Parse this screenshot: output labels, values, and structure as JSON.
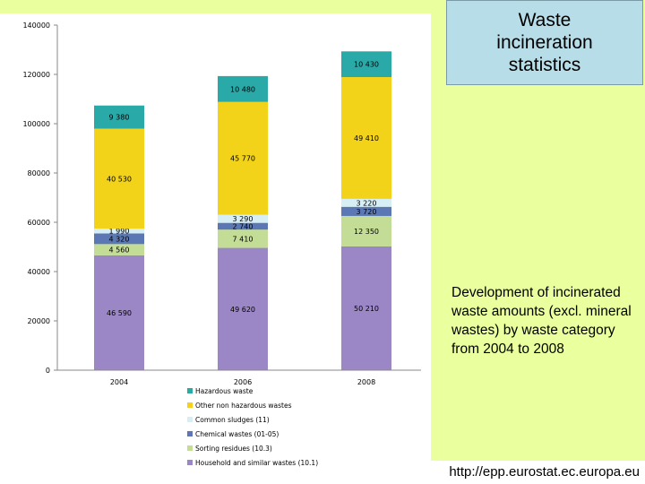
{
  "chart_data": {
    "type": "bar",
    "stacked": true,
    "categories": [
      "2004",
      "2006",
      "2008"
    ],
    "ylim": [
      0,
      140000
    ],
    "yticks": [
      0,
      20000,
      40000,
      60000,
      80000,
      100000,
      120000,
      140000
    ],
    "ytick_labels": [
      "0",
      "20000",
      "40000",
      "60000",
      "80000",
      "100000",
      "120000",
      "140000"
    ],
    "grid": false,
    "legend_position": "bottom",
    "series": [
      {
        "name": "Household and similar wastes (10.1)",
        "color": "#9b86c6",
        "values": [
          46590,
          49620,
          50210
        ],
        "labels": [
          "46 590",
          "49 620",
          "50 210"
        ]
      },
      {
        "name": "Sorting residues (10.3)",
        "color": "#c3dc96",
        "values": [
          4560,
          7410,
          12350
        ],
        "labels": [
          "4 560",
          "7 410",
          "12 350"
        ]
      },
      {
        "name": "Chemical wastes (01-05)",
        "color": "#5b78b4",
        "values": [
          4320,
          2740,
          3720
        ],
        "labels": [
          "4 320",
          "2 740",
          "3 720"
        ]
      },
      {
        "name": "Common sludges (11)",
        "color": "#d6eef4",
        "values": [
          1990,
          3290,
          3220
        ],
        "labels": [
          "1 990",
          "3 290",
          "3 220"
        ]
      },
      {
        "name": "Other non hazardous wastes",
        "color": "#f2d31a",
        "values": [
          40530,
          45770,
          49410
        ],
        "labels": [
          "40 530",
          "45 770",
          "49 410"
        ]
      },
      {
        "name": "Hazardous waste",
        "color": "#2aa9a9",
        "values": [
          9380,
          10480,
          10430
        ],
        "labels": [
          "9 380",
          "10 480",
          "10 430"
        ]
      }
    ],
    "legend_order": [
      "Hazardous waste",
      "Other non hazardous wastes",
      "Common sludges (11)",
      "Chemical wastes (01-05)",
      "Sorting residues (10.3)",
      "Household and similar wastes (10.1)"
    ]
  },
  "title_box": {
    "text": "Waste incineration statistics"
  },
  "description": {
    "text": "Development of incinerated waste amounts (excl. mineral wastes) by waste category from 2004 to 2008"
  },
  "source": {
    "text": "http://epp.eurostat.ec.europa.eu"
  }
}
